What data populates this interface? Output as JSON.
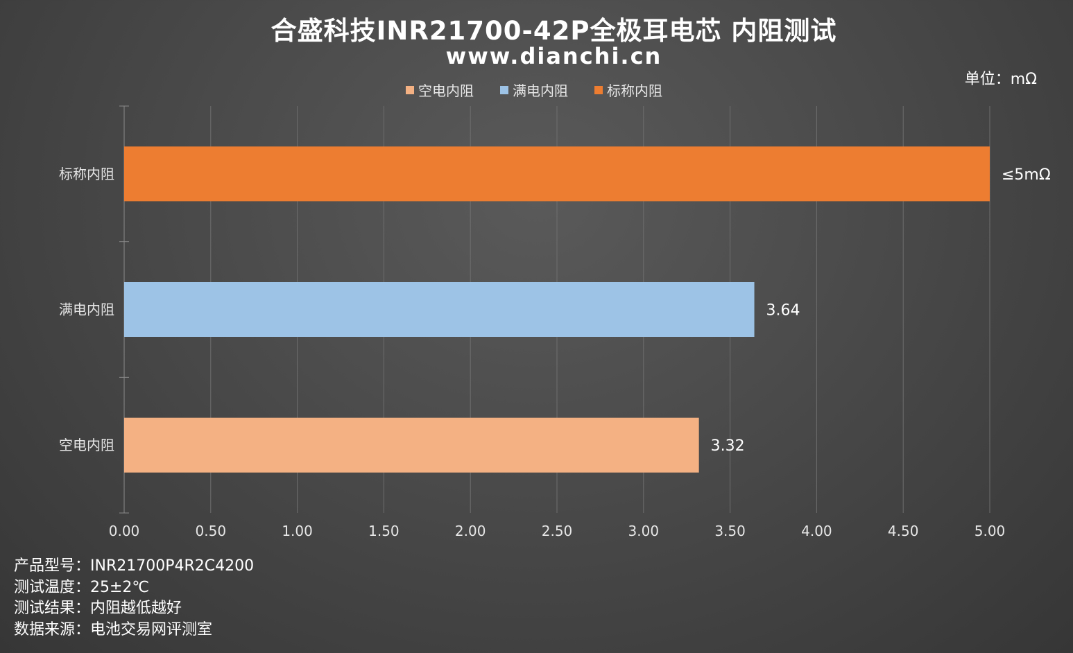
{
  "title": "合盛科技INR21700-42P全极耳电芯 内阻测试",
  "subtitle": "www.dianchi.cn",
  "unit_label": "单位：mΩ",
  "legend": [
    {
      "label": "空电内阻",
      "color": "#f4b183"
    },
    {
      "label": "满电内阻",
      "color": "#9dc3e6"
    },
    {
      "label": "标称内阻",
      "color": "#ed7d31"
    }
  ],
  "chart_data": {
    "type": "bar",
    "orientation": "horizontal",
    "categories": [
      "标称内阻",
      "满电内阻",
      "空电内阻"
    ],
    "values": [
      5.0,
      3.64,
      3.32
    ],
    "data_labels": [
      "≤5mΩ",
      "3.64",
      "3.32"
    ],
    "colors": [
      "#ed7d31",
      "#9dc3e6",
      "#f4b183"
    ],
    "xlim": [
      0,
      5
    ],
    "xticks": [
      "0.00",
      "0.50",
      "1.00",
      "1.50",
      "2.00",
      "2.50",
      "3.00",
      "3.50",
      "4.00",
      "4.50",
      "5.00"
    ],
    "grid": true,
    "legend_position": "top"
  },
  "footer": {
    "lines": [
      "产品型号：INR21700P4R2C4200",
      "测试温度：25±2℃",
      "测试结果：内阻越低越好",
      "数据来源：电池交易网评测室"
    ]
  }
}
